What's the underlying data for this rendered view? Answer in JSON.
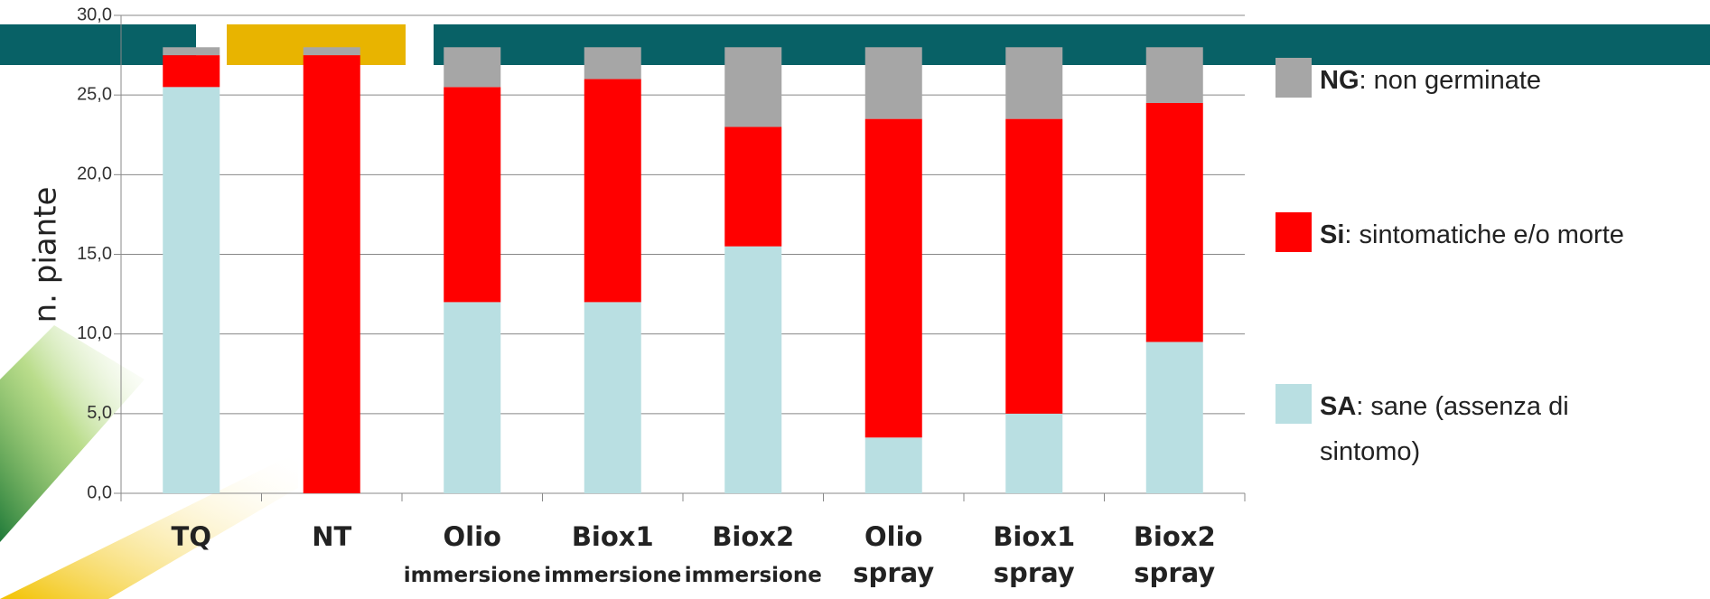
{
  "chart_data": {
    "type": "stacked_bar",
    "y_label": "n. piante",
    "categories": [
      "TQ",
      "NT",
      "Olio immersione",
      "Biox1 immersione",
      "Biox2 immersione",
      "Olio spray",
      "Biox1 spray",
      "Biox2 spray"
    ],
    "series": [
      {
        "name": "SA",
        "legend_text": ": sane (assenza di sintomo)",
        "color": "#b9dfe2",
        "values": [
          25.5,
          0,
          12,
          12,
          15.5,
          3.5,
          5,
          9.5
        ]
      },
      {
        "name": "Si",
        "legend_text": ": sintomatiche e/o morte",
        "color": "#ff0000",
        "values": [
          2,
          27.5,
          13.5,
          14,
          7.5,
          20,
          18.5,
          15
        ]
      },
      {
        "name": "NG",
        "legend_text": ": non germinate",
        "color": "#a6a6a6",
        "values": [
          0.5,
          0.5,
          2.5,
          2,
          5,
          4.5,
          4.5,
          3.5
        ]
      }
    ],
    "ylim": [
      0,
      30
    ],
    "yticks": [
      {
        "value": 0,
        "label": "0,0"
      },
      {
        "value": 5,
        "label": "5,0"
      },
      {
        "value": 10,
        "label": "10,0"
      },
      {
        "value": 15,
        "label": "15,0"
      },
      {
        "value": 20,
        "label": "20,0"
      },
      {
        "value": 25,
        "label": "25,0"
      },
      {
        "value": 30,
        "label": "30,0"
      }
    ],
    "grid": true
  }
}
